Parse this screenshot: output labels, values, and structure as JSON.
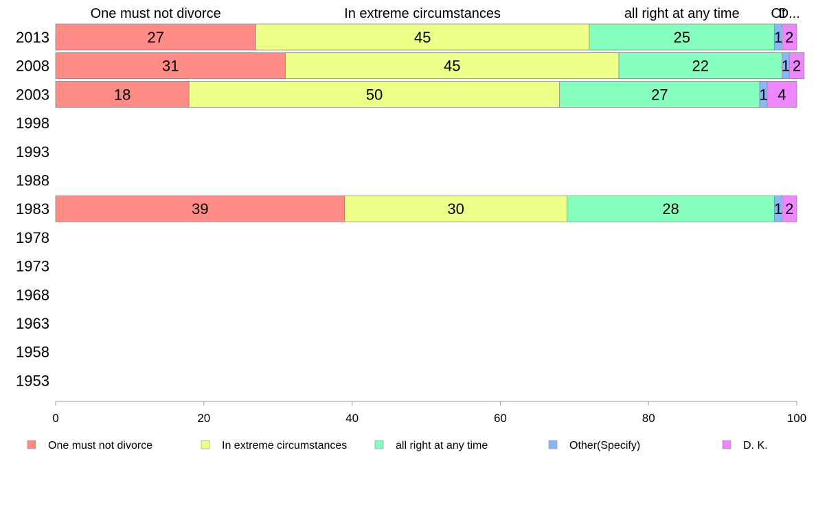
{
  "chart_data": {
    "type": "bar",
    "orientation": "horizontal",
    "stacked": true,
    "categories": [
      "2013",
      "2008",
      "2003",
      "1998",
      "1993",
      "1988",
      "1983",
      "1978",
      "1973",
      "1968",
      "1963",
      "1958",
      "1953"
    ],
    "series": [
      {
        "name": "One must not divorce",
        "color": "#ff8b87",
        "values": [
          27,
          31,
          18,
          null,
          null,
          null,
          39,
          null,
          null,
          null,
          null,
          null,
          null
        ]
      },
      {
        "name": "In extreme circumstances",
        "color": "#eeff87",
        "values": [
          45,
          45,
          50,
          null,
          null,
          null,
          30,
          null,
          null,
          null,
          null,
          null,
          null
        ]
      },
      {
        "name": "all right at any time",
        "color": "#87ffbf",
        "values": [
          25,
          22,
          27,
          null,
          null,
          null,
          28,
          null,
          null,
          null,
          null,
          null,
          null
        ]
      },
      {
        "name": "Other(Specify)",
        "color": "#87b7ff",
        "values": [
          1,
          1,
          1,
          null,
          null,
          null,
          1,
          null,
          null,
          null,
          null,
          null,
          null
        ]
      },
      {
        "name": "D. K.",
        "color": "#ee87ff",
        "values": [
          2,
          2,
          4,
          null,
          null,
          null,
          2,
          null,
          null,
          null,
          null,
          null,
          null
        ]
      }
    ],
    "top_labels": [
      "One must not divorce",
      "In extreme circumstances",
      "all right at any time",
      "Ot",
      "D..."
    ],
    "xlim": [
      0,
      100
    ],
    "xticks": [
      0,
      20,
      40,
      60,
      80,
      100
    ],
    "grid": false,
    "legend_position": "bottom"
  }
}
